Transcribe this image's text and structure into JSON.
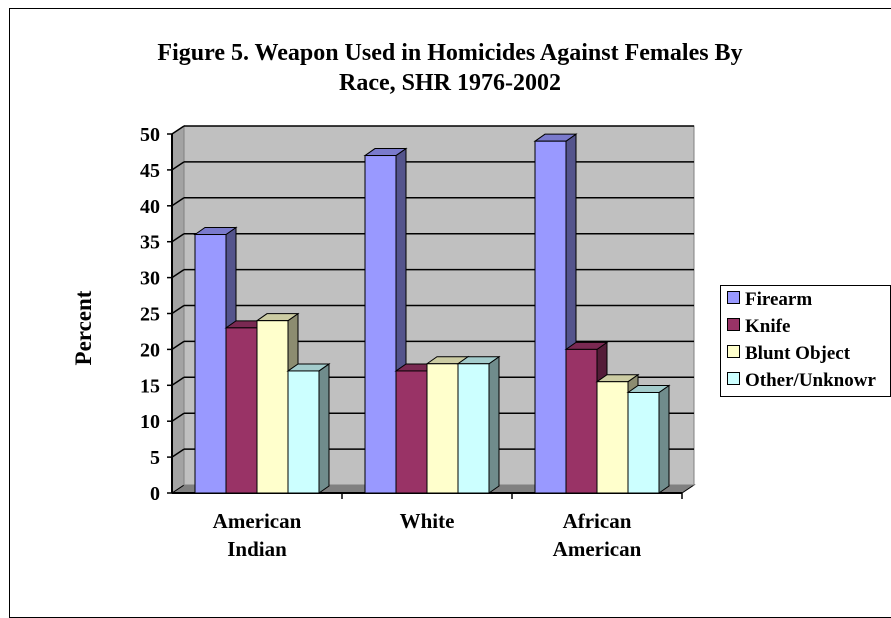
{
  "chart_data": {
    "type": "bar",
    "title_lines": [
      "Figure 5. Weapon Used in Homicides Against Females By",
      "Race, SHR 1976-2002"
    ],
    "ylabel": "Percent",
    "xlabel": "",
    "categories": [
      [
        "American",
        "Indian"
      ],
      [
        "White"
      ],
      [
        "African",
        "American"
      ]
    ],
    "series": [
      {
        "name": "Firearm",
        "values": [
          36,
          47,
          49
        ],
        "color": "#9999ff"
      },
      {
        "name": "Knife",
        "values": [
          23,
          17,
          20
        ],
        "color": "#993366"
      },
      {
        "name": "Blunt Object",
        "values": [
          24,
          18,
          15.5
        ],
        "color": "#ffffcc"
      },
      {
        "name": "Other/Unknown",
        "values": [
          17,
          18,
          14
        ],
        "color": "#ccffff"
      }
    ],
    "legend_labels": [
      "Firearm",
      "Knife",
      "Blunt Object",
      "Other/Unknowr"
    ],
    "ylim": [
      0,
      50
    ],
    "yticks": [
      0,
      5,
      10,
      15,
      20,
      25,
      30,
      35,
      40,
      45,
      50
    ],
    "grid": true,
    "legend_position": "right",
    "style": "3d-clustered-column",
    "wall_color": "#c0c0c0",
    "floor_color": "#808080"
  }
}
